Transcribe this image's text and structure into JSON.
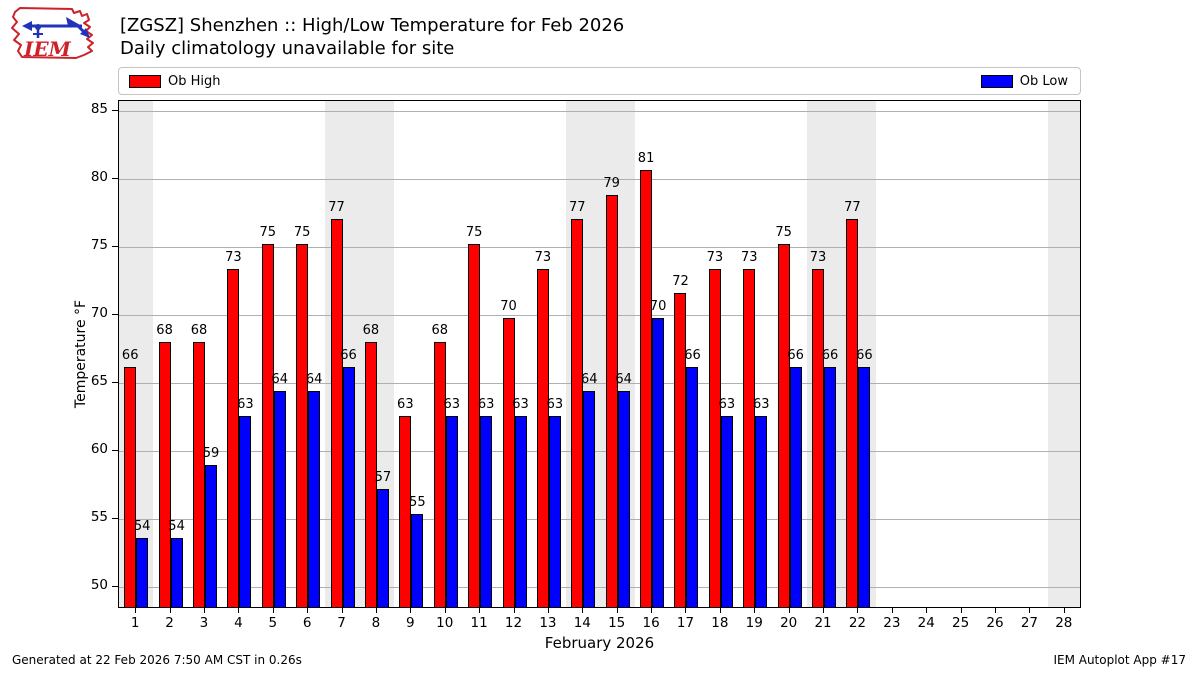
{
  "header": {
    "logo_text": "IEM",
    "title_line1": "[ZGSZ] Shenzhen :: High/Low Temperature for Feb 2026",
    "title_line2": "Daily climatology unavailable for site"
  },
  "legend": {
    "high_label": "Ob High",
    "low_label": "Ob Low"
  },
  "footer": {
    "left": "Generated at 22 Feb 2026 7:50 AM CST in 0.26s",
    "right": "IEM Autoplot App #17"
  },
  "colors": {
    "high": "#ff0000",
    "low": "#0000ff",
    "grid": "#b0b0b0",
    "weekend_band": "#ebebeb",
    "logo_red": "#cc2229",
    "logo_blue": "#2233bb"
  },
  "chart_data": {
    "type": "bar",
    "title": "[ZGSZ] Shenzhen :: High/Low Temperature for Feb 2026",
    "subtitle": "Daily climatology unavailable for site",
    "xlabel": "February 2026",
    "ylabel": "Temperature °F",
    "x": [
      1,
      2,
      3,
      4,
      5,
      6,
      7,
      8,
      9,
      10,
      11,
      12,
      13,
      14,
      15,
      16,
      17,
      18,
      19,
      20,
      21,
      22,
      23,
      24,
      25,
      26,
      27,
      28
    ],
    "x_tick_labels": [
      "1",
      "2",
      "3",
      "4",
      "5",
      "6",
      "7",
      "8",
      "9",
      "10",
      "11",
      "12",
      "13",
      "14",
      "15",
      "16",
      "17",
      "18",
      "19",
      "20",
      "21",
      "22",
      "23",
      "24",
      "25",
      "26",
      "27",
      "28"
    ],
    "xlim": [
      0.5,
      28.5
    ],
    "ylim": [
      48.4,
      85.7
    ],
    "yticks": [
      50,
      55,
      60,
      65,
      70,
      75,
      80,
      85
    ],
    "grid": "horizontal",
    "legend_position": "top",
    "weekend_bands": [
      [
        0.5,
        1.5
      ],
      [
        6.5,
        8.5
      ],
      [
        13.5,
        15.5
      ],
      [
        20.5,
        22.5
      ],
      [
        27.5,
        28.5
      ]
    ],
    "series": [
      {
        "name": "Ob High",
        "color": "#ff0000",
        "values": [
          66.2,
          68,
          68,
          73.4,
          75.2,
          75.2,
          77,
          68,
          62.6,
          68,
          75.2,
          69.8,
          73.4,
          77,
          78.8,
          80.6,
          71.6,
          73.4,
          73.4,
          75.2,
          73.4,
          77,
          null,
          null,
          null,
          null,
          null,
          null
        ],
        "labels": [
          "66",
          "68",
          "68",
          "73",
          "75",
          "75",
          "77",
          "68",
          "63",
          "68",
          "75",
          "70",
          "73",
          "77",
          "79",
          "81",
          "72",
          "73",
          "73",
          "75",
          "73",
          "77",
          "",
          "",
          "",
          "",
          "",
          ""
        ]
      },
      {
        "name": "Ob Low",
        "color": "#0000ff",
        "values": [
          53.6,
          53.6,
          59,
          62.6,
          64.4,
          64.4,
          66.2,
          57.2,
          55.4,
          62.6,
          62.6,
          62.6,
          62.6,
          64.4,
          64.4,
          69.8,
          66.2,
          62.6,
          62.6,
          66.2,
          66.2,
          66.2,
          null,
          null,
          null,
          null,
          null,
          null
        ],
        "labels": [
          "54",
          "54",
          "59",
          "63",
          "64",
          "64",
          "66",
          "57",
          "55",
          "63",
          "63",
          "63",
          "63",
          "64",
          "64",
          "70",
          "66",
          "63",
          "63",
          "66",
          "66",
          "66",
          "",
          "",
          "",
          "",
          "",
          ""
        ]
      }
    ]
  }
}
